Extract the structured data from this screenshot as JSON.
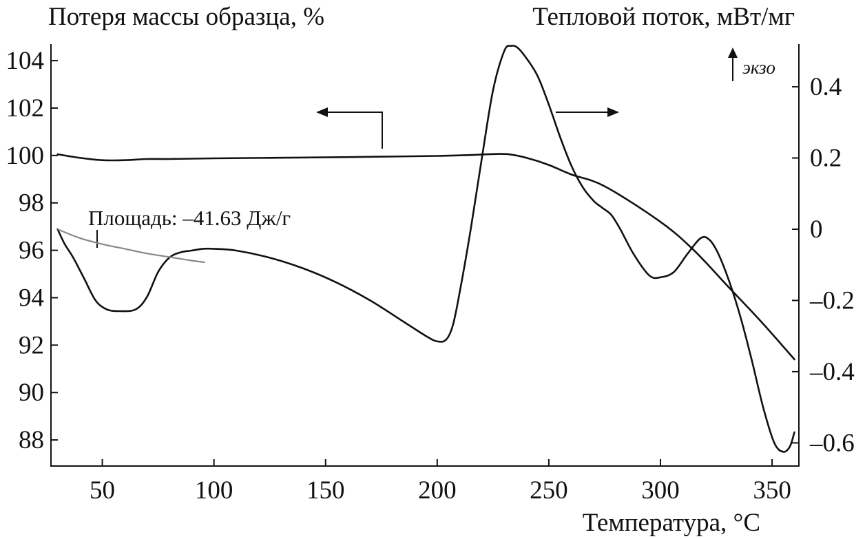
{
  "chart_data": {
    "type": "line",
    "left_axis_title": "Потеря массы образца, %",
    "right_axis_title": "Тепловой поток, мВт/мг",
    "x_axis_title": "Температура, °C",
    "exo_label": "экзо",
    "area_annotation": "Площадь: –41.63 Дж/г",
    "x_range": [
      27,
      362
    ],
    "y_left_range": [
      86.9,
      104.7
    ],
    "y_right_range": [
      -0.665,
      0.52
    ],
    "x_ticks": [
      {
        "value": 50,
        "label": "50"
      },
      {
        "value": 100,
        "label": "100"
      },
      {
        "value": 150,
        "label": "150"
      },
      {
        "value": 200,
        "label": "200"
      },
      {
        "value": 250,
        "label": "250"
      },
      {
        "value": 300,
        "label": "300"
      },
      {
        "value": 350,
        "label": "350"
      }
    ],
    "y_left_ticks": [
      {
        "value": 104,
        "label": "104"
      },
      {
        "value": 102,
        "label": "102"
      },
      {
        "value": 100,
        "label": "100"
      },
      {
        "value": 98,
        "label": "98"
      },
      {
        "value": 96,
        "label": "96"
      },
      {
        "value": 94,
        "label": "94"
      },
      {
        "value": 92,
        "label": "92"
      },
      {
        "value": 90,
        "label": "90"
      },
      {
        "value": 88,
        "label": "88"
      }
    ],
    "y_right_ticks": [
      {
        "value": 0.4,
        "label": "0.4"
      },
      {
        "value": 0.2,
        "label": "0.2"
      },
      {
        "value": 0,
        "label": "0"
      },
      {
        "value": -0.2,
        "label": "–0.2"
      },
      {
        "value": -0.4,
        "label": "–0.4"
      },
      {
        "value": -0.6,
        "label": "–0.6"
      }
    ],
    "series": [
      {
        "axis": "left",
        "x": [
          30,
          40,
          50,
          60,
          70,
          80,
          100,
          125,
          150,
          175,
          200,
          215,
          225,
          232,
          240,
          250,
          260,
          275,
          300,
          315,
          330,
          345,
          360
        ],
        "y": [
          100.05,
          99.9,
          99.8,
          99.8,
          99.85,
          99.85,
          99.88,
          99.9,
          99.92,
          99.95,
          99.98,
          100.02,
          100.06,
          100.05,
          99.9,
          99.6,
          99.2,
          98.7,
          97.2,
          96.0,
          94.5,
          93.0,
          91.4
        ]
      },
      {
        "axis": "right",
        "x": [
          30,
          33,
          37,
          42,
          47,
          52,
          58,
          65,
          70,
          75,
          80,
          85,
          90,
          95,
          100,
          110,
          125,
          140,
          155,
          170,
          185,
          195,
          200,
          204,
          207,
          210,
          215,
          220,
          225,
          230,
          233,
          236,
          240,
          245,
          250,
          255,
          260,
          265,
          270,
          274,
          278,
          282,
          288,
          295,
          300,
          306,
          312,
          318,
          322,
          326,
          331,
          336,
          341,
          346,
          351,
          355,
          358,
          360
        ],
        "y": [
          0.0,
          -0.04,
          -0.08,
          -0.14,
          -0.2,
          -0.225,
          -0.23,
          -0.225,
          -0.19,
          -0.12,
          -0.08,
          -0.065,
          -0.06,
          -0.055,
          -0.055,
          -0.06,
          -0.08,
          -0.11,
          -0.15,
          -0.2,
          -0.26,
          -0.3,
          -0.315,
          -0.31,
          -0.27,
          -0.18,
          0.0,
          0.2,
          0.39,
          0.5,
          0.515,
          0.51,
          0.48,
          0.43,
          0.35,
          0.26,
          0.18,
          0.12,
          0.08,
          0.06,
          0.04,
          0.0,
          -0.07,
          -0.13,
          -0.135,
          -0.12,
          -0.07,
          -0.025,
          -0.03,
          -0.07,
          -0.15,
          -0.25,
          -0.37,
          -0.5,
          -0.6,
          -0.625,
          -0.61,
          -0.57
        ]
      },
      {
        "axis": "right",
        "x": [
          30,
          40,
          50,
          60,
          70,
          80,
          90,
          96
        ],
        "y": [
          0.0,
          -0.025,
          -0.042,
          -0.055,
          -0.068,
          -0.078,
          -0.088,
          -0.093
        ]
      }
    ]
  }
}
